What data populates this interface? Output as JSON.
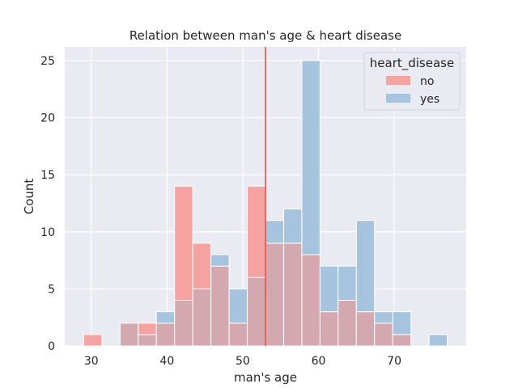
{
  "chart_data": {
    "type": "bar",
    "title": "Relation between man's age & heart disease",
    "xlabel": "man's age",
    "ylabel": "Count",
    "xlim": [
      26.5,
      79.5
    ],
    "ylim": [
      0,
      26.2
    ],
    "x_ticks": [
      30,
      40,
      50,
      60,
      70
    ],
    "y_ticks": [
      0,
      5,
      10,
      15,
      20,
      25
    ],
    "grid": true,
    "bin_edges": [
      29,
      31.4,
      33.8,
      36.2,
      38.6,
      41,
      43.4,
      45.8,
      48.2,
      50.6,
      53,
      55.4,
      57.8,
      60.2,
      62.6,
      65,
      67.4,
      69.8,
      72.2,
      74.6,
      77
    ],
    "series": [
      {
        "name": "no",
        "color": "#f4a3a1",
        "values": [
          1,
          0,
          2,
          2,
          2,
          14,
          9,
          7,
          2,
          14,
          9,
          9,
          8,
          3,
          4,
          3,
          2,
          1,
          0,
          0
        ]
      },
      {
        "name": "yes",
        "color": "#a7c4df",
        "values": [
          0,
          0,
          2,
          1,
          3,
          4,
          5,
          8,
          5,
          6,
          11,
          12,
          25,
          7,
          7,
          11,
          3,
          3,
          0,
          1
        ]
      }
    ],
    "overlap_color": "#d3a9af",
    "vline": {
      "x": 53,
      "color": "#e8524a"
    },
    "legend": {
      "title": "heart_disease",
      "placement": "top-right"
    },
    "colors": {
      "plot_bg": "#eaeaf2",
      "grid": "#ffffff"
    }
  }
}
